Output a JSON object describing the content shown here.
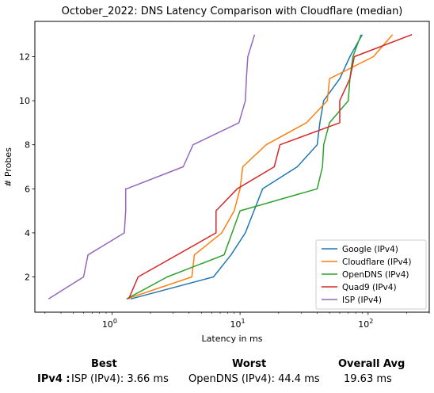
{
  "chart_data": {
    "type": "line",
    "title": "October_2022: DNS Latency Comparison with Cloudflare (median)",
    "xlabel": "Latency in ms",
    "ylabel": "# Probes",
    "xscale": "log",
    "xlim": [
      0.25,
      300
    ],
    "ylim": [
      0.4,
      13.6
    ],
    "xticks": [
      1,
      10,
      100
    ],
    "xtick_labels": [
      "10^0",
      "10^1",
      "10^2"
    ],
    "yticks": [
      2,
      4,
      6,
      8,
      10,
      12
    ],
    "grid": false,
    "legend_position": "lower-right",
    "series": [
      {
        "name": "Google (IPv4)",
        "color": "#1f77b4",
        "points": [
          [
            1.4,
            1
          ],
          [
            6.2,
            2
          ],
          [
            8.5,
            3
          ],
          [
            11,
            4
          ],
          [
            15,
            6
          ],
          [
            28,
            7
          ],
          [
            40,
            8
          ],
          [
            42,
            9
          ],
          [
            45,
            10
          ],
          [
            60,
            11
          ],
          [
            72,
            12
          ],
          [
            90,
            13
          ]
        ]
      },
      {
        "name": "Cloudflare (IPv4)",
        "color": "#ff7f0e",
        "points": [
          [
            1.3,
            1
          ],
          [
            4.2,
            2
          ],
          [
            4.4,
            3
          ],
          [
            7.2,
            4
          ],
          [
            9,
            5
          ],
          [
            10,
            6
          ],
          [
            10.5,
            7
          ],
          [
            16,
            8
          ],
          [
            33,
            9
          ],
          [
            48,
            10
          ],
          [
            50,
            11
          ],
          [
            110,
            12
          ],
          [
            155,
            13
          ]
        ]
      },
      {
        "name": "OpenDNS (IPv4)",
        "color": "#2ca02c",
        "points": [
          [
            1.3,
            1
          ],
          [
            2.7,
            2
          ],
          [
            7.5,
            3
          ],
          [
            10,
            5
          ],
          [
            40,
            6
          ],
          [
            44,
            7
          ],
          [
            45,
            8
          ],
          [
            50,
            9
          ],
          [
            70,
            10
          ],
          [
            72,
            11
          ],
          [
            76,
            12
          ],
          [
            88,
            13
          ]
        ]
      },
      {
        "name": "Quad9 (IPv4)",
        "color": "#d62728",
        "points": [
          [
            1.35,
            1
          ],
          [
            1.6,
            2
          ],
          [
            6.5,
            4
          ],
          [
            6.5,
            5
          ],
          [
            9.5,
            6
          ],
          [
            18.5,
            7
          ],
          [
            20.5,
            8
          ],
          [
            60,
            9
          ],
          [
            60,
            10
          ],
          [
            72,
            11
          ],
          [
            78,
            12
          ],
          [
            220,
            13
          ]
        ]
      },
      {
        "name": "ISP (IPv4)",
        "color": "#9467bd",
        "points": [
          [
            0.32,
            1
          ],
          [
            0.6,
            2
          ],
          [
            0.65,
            3
          ],
          [
            1.25,
            4
          ],
          [
            1.28,
            5
          ],
          [
            1.28,
            6
          ],
          [
            1.3,
            6
          ],
          [
            3.6,
            7
          ],
          [
            4.3,
            8
          ],
          [
            9.8,
            9
          ],
          [
            11,
            10
          ],
          [
            11.2,
            11
          ],
          [
            11.5,
            12
          ],
          [
            13,
            13
          ]
        ]
      }
    ]
  },
  "summary": {
    "headers": {
      "best": "Best",
      "worst": "Worst",
      "avg": "Overall Avg"
    },
    "row_label": "IPv4 :",
    "best": "ISP (IPv4): 3.66 ms",
    "worst": "OpenDNS (IPv4): 44.4 ms",
    "avg": "19.63 ms"
  }
}
